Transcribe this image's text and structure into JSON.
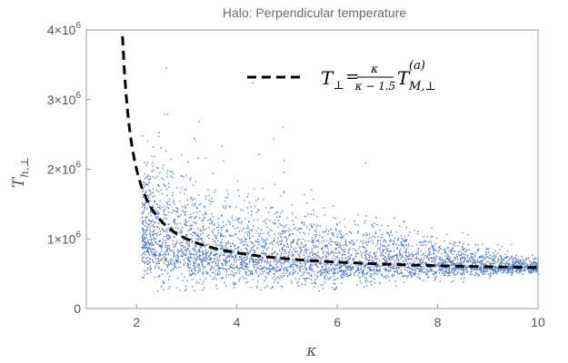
{
  "chart_data": {
    "type": "scatter",
    "title": "Halo: Perpendicular temperature",
    "xlabel": "κ",
    "ylabel": {
      "base": "T",
      "sub": "h,⊥"
    },
    "xlim": [
      1,
      10
    ],
    "ylim": [
      0,
      4000000
    ],
    "grid": false,
    "legend_position": "top-right",
    "x_ticks": [
      {
        "value": 2,
        "label": "2"
      },
      {
        "value": 4,
        "label": "4"
      },
      {
        "value": 6,
        "label": "6"
      },
      {
        "value": 8,
        "label": "8"
      },
      {
        "value": 10,
        "label": "10"
      }
    ],
    "y_ticks": [
      {
        "value": 0,
        "mantissa": "0",
        "exp": ""
      },
      {
        "value": 1000000,
        "mantissa": "1×10",
        "exp": "6"
      },
      {
        "value": 2000000,
        "mantissa": "2×10",
        "exp": "6"
      },
      {
        "value": 3000000,
        "mantissa": "3×10",
        "exp": "6"
      },
      {
        "value": 4000000,
        "mantissa": "4×10",
        "exp": "6"
      }
    ],
    "series": [
      {
        "kind": "scatter",
        "color": "#5b7fc1",
        "x_range": [
          2.1,
          10.0
        ],
        "density_profile": [
          {
            "x": 2.2,
            "y_median": 1050000,
            "y_spread": 280000
          },
          {
            "x": 2.6,
            "y_median": 920000,
            "y_spread": 260000
          },
          {
            "x": 3.0,
            "y_median": 850000,
            "y_spread": 240000
          },
          {
            "x": 4.0,
            "y_median": 760000,
            "y_spread": 200000
          },
          {
            "x": 5.0,
            "y_median": 720000,
            "y_spread": 180000
          },
          {
            "x": 6.0,
            "y_median": 690000,
            "y_spread": 160000
          },
          {
            "x": 7.0,
            "y_median": 670000,
            "y_spread": 130000
          },
          {
            "x": 8.0,
            "y_median": 640000,
            "y_spread": 100000
          },
          {
            "x": 9.0,
            "y_median": 620000,
            "y_spread": 70000
          },
          {
            "x": 9.6,
            "y_median": 600000,
            "y_spread": 40000
          }
        ]
      },
      {
        "kind": "curve",
        "style": "dashed",
        "color": "#000000",
        "formula": "T = A·κ/(κ−1.5)",
        "amplitude": 500000,
        "x_range": [
          1.72,
          10.0
        ]
      }
    ],
    "legend": {
      "lhs_base": "T",
      "lhs_sub": "⊥",
      "equals": "=",
      "frac_num": "κ",
      "frac_den": "κ − 1.5",
      "rhs_base": "T",
      "rhs_sub": "M,⊥",
      "rhs_sup": "(a)"
    }
  }
}
